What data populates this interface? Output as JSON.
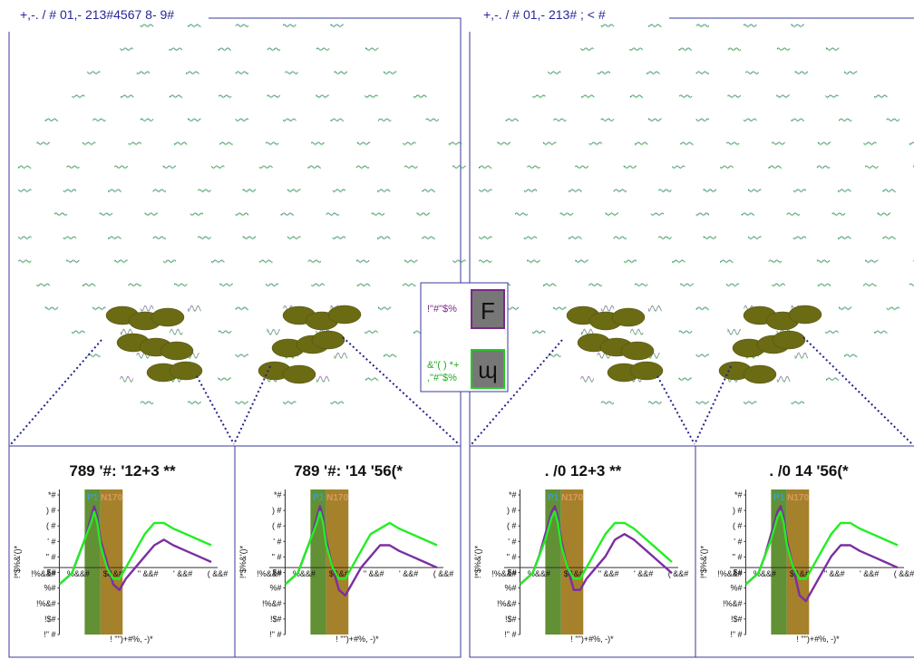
{
  "figure": {
    "left_title": "+,-. / # 01,- 213#4567 8- 9#",
    "right_title": "+,-. / # 01,- 213# ; < #"
  },
  "legend": {
    "item1_label": "!\"#\"$%",
    "item1_glyph": "F",
    "item1_color": "#7a2a8a",
    "item2_label_line1": "&\"( ) *+",
    "item2_label_line2": ",\"#\"$%",
    "item2_glyph": "ɰ",
    "item2_color": "#22cc22"
  },
  "colors": {
    "border": "#3a3a9a",
    "blob": "#6b6b14",
    "series_a": "#7b2fa0",
    "series_b": "#22ee22",
    "p1_band": "#5a8a2a",
    "n170_band": "#a07a20",
    "p1_label": "#3aa0c8",
    "n170_label": "#d89a60"
  },
  "chart_data": [
    {
      "type": "line",
      "title": "789 '#: '12+3 **",
      "ylabel": "!*$%&'()*",
      "xlabel": "! \"\")+#%, -)*",
      "y_ticks": [
        "*#",
        ") #",
        "( #",
        "' #",
        "\" #",
        "$#",
        "%#",
        "!%&#",
        "!$#",
        "!\" #"
      ],
      "x_ticks": [
        "!%&&#",
        "%&&#",
        "$&&#",
        "\" &&#",
        "' &&#",
        "( &&#"
      ],
      "bands": [
        {
          "label": "P1",
          "from": 0.08,
          "to": 0.13
        },
        {
          "label": "N170",
          "from": 0.13,
          "to": 0.2
        }
      ],
      "series": [
        {
          "color": "#7b2fa0",
          "values": [
            [
              0,
              -3
            ],
            [
              0.02,
              -2
            ],
            [
              0.04,
              -1
            ],
            [
              0.06,
              2
            ],
            [
              0.08,
              5
            ],
            [
              0.1,
              9
            ],
            [
              0.11,
              11
            ],
            [
              0.12,
              9
            ],
            [
              0.13,
              5
            ],
            [
              0.15,
              1
            ],
            [
              0.17,
              -3
            ],
            [
              0.19,
              -4
            ],
            [
              0.21,
              -2
            ],
            [
              0.24,
              0
            ],
            [
              0.27,
              2
            ],
            [
              0.3,
              4
            ],
            [
              0.33,
              5
            ],
            [
              0.36,
              4
            ],
            [
              0.4,
              3
            ],
            [
              0.44,
              2
            ],
            [
              0.48,
              1
            ]
          ]
        },
        {
          "color": "#22ee22",
          "values": [
            [
              0,
              -3
            ],
            [
              0.02,
              -2
            ],
            [
              0.04,
              -1
            ],
            [
              0.06,
              2
            ],
            [
              0.08,
              5
            ],
            [
              0.1,
              8
            ],
            [
              0.11,
              10
            ],
            [
              0.12,
              8
            ],
            [
              0.13,
              4
            ],
            [
              0.15,
              0
            ],
            [
              0.17,
              -2
            ],
            [
              0.19,
              -2
            ],
            [
              0.21,
              0
            ],
            [
              0.24,
              3
            ],
            [
              0.27,
              6
            ],
            [
              0.3,
              8
            ],
            [
              0.33,
              8
            ],
            [
              0.36,
              7
            ],
            [
              0.4,
              6
            ],
            [
              0.44,
              5
            ],
            [
              0.48,
              4
            ]
          ]
        }
      ]
    },
    {
      "type": "line",
      "title": "789 '#: '14 '56(*",
      "ylabel": "!*$%&'()*",
      "xlabel": "! \"\")+#%, -)*",
      "y_ticks": [
        "*#",
        ") #",
        "( #",
        "' #",
        "\" #",
        "$#",
        "%#",
        "!%&#",
        "!$#",
        "!\" #"
      ],
      "x_ticks": [
        "!%&&#",
        "%&&#",
        "$&&#",
        "\" &&#",
        "' &&#",
        "( &&#"
      ],
      "bands": [
        {
          "label": "P1",
          "from": 0.08,
          "to": 0.13
        },
        {
          "label": "N170",
          "from": 0.13,
          "to": 0.2
        }
      ],
      "series": [
        {
          "color": "#7b2fa0",
          "values": [
            [
              0,
              -3
            ],
            [
              0.02,
              -2
            ],
            [
              0.04,
              -1
            ],
            [
              0.06,
              2
            ],
            [
              0.08,
              5
            ],
            [
              0.1,
              9
            ],
            [
              0.11,
              11
            ],
            [
              0.12,
              9
            ],
            [
              0.13,
              5
            ],
            [
              0.15,
              0
            ],
            [
              0.17,
              -4
            ],
            [
              0.19,
              -5
            ],
            [
              0.21,
              -3
            ],
            [
              0.24,
              0
            ],
            [
              0.27,
              2
            ],
            [
              0.3,
              4
            ],
            [
              0.33,
              4
            ],
            [
              0.36,
              3
            ],
            [
              0.4,
              2
            ],
            [
              0.44,
              1
            ],
            [
              0.48,
              0
            ]
          ]
        },
        {
          "color": "#22ee22",
          "values": [
            [
              0,
              -3
            ],
            [
              0.02,
              -2
            ],
            [
              0.04,
              -1
            ],
            [
              0.06,
              2
            ],
            [
              0.08,
              5
            ],
            [
              0.1,
              8
            ],
            [
              0.11,
              10
            ],
            [
              0.12,
              8
            ],
            [
              0.13,
              4
            ],
            [
              0.15,
              0
            ],
            [
              0.17,
              -2
            ],
            [
              0.19,
              -2
            ],
            [
              0.21,
              0
            ],
            [
              0.24,
              3
            ],
            [
              0.27,
              6
            ],
            [
              0.3,
              7
            ],
            [
              0.33,
              8
            ],
            [
              0.36,
              7
            ],
            [
              0.4,
              6
            ],
            [
              0.44,
              5
            ],
            [
              0.48,
              4
            ]
          ]
        }
      ]
    },
    {
      "type": "line",
      "title": ". /0 12+3 **",
      "ylabel": "!*$%&'()*",
      "xlabel": "! \"\")+#%, -)*",
      "y_ticks": [
        "*#",
        ") #",
        "( #",
        "' #",
        "\" #",
        "$#",
        "%#",
        "!%&#",
        "!$#",
        "!\" #"
      ],
      "x_ticks": [
        "!%&&#",
        "%&&#",
        "$&&#",
        "\" &&#",
        "' &&#",
        "( &&#"
      ],
      "bands": [
        {
          "label": "P1",
          "from": 0.08,
          "to": 0.13
        },
        {
          "label": "N170",
          "from": 0.13,
          "to": 0.2
        }
      ],
      "series": [
        {
          "color": "#7b2fa0",
          "values": [
            [
              0,
              -3
            ],
            [
              0.02,
              -2
            ],
            [
              0.04,
              -1
            ],
            [
              0.06,
              2
            ],
            [
              0.08,
              6
            ],
            [
              0.1,
              10
            ],
            [
              0.11,
              11
            ],
            [
              0.12,
              9
            ],
            [
              0.13,
              5
            ],
            [
              0.15,
              0
            ],
            [
              0.17,
              -4
            ],
            [
              0.19,
              -4
            ],
            [
              0.21,
              -2
            ],
            [
              0.24,
              0
            ],
            [
              0.27,
              2
            ],
            [
              0.3,
              5
            ],
            [
              0.33,
              6
            ],
            [
              0.36,
              5
            ],
            [
              0.4,
              3
            ],
            [
              0.44,
              1
            ],
            [
              0.48,
              -1
            ]
          ]
        },
        {
          "color": "#22ee22",
          "values": [
            [
              0,
              -3
            ],
            [
              0.02,
              -2
            ],
            [
              0.04,
              -1
            ],
            [
              0.06,
              2
            ],
            [
              0.08,
              5
            ],
            [
              0.1,
              9
            ],
            [
              0.11,
              10
            ],
            [
              0.12,
              8
            ],
            [
              0.13,
              4
            ],
            [
              0.15,
              0
            ],
            [
              0.17,
              -2
            ],
            [
              0.19,
              -2
            ],
            [
              0.21,
              0
            ],
            [
              0.24,
              3
            ],
            [
              0.27,
              6
            ],
            [
              0.3,
              8
            ],
            [
              0.33,
              8
            ],
            [
              0.36,
              7
            ],
            [
              0.4,
              5
            ],
            [
              0.44,
              3
            ],
            [
              0.48,
              1
            ]
          ]
        }
      ]
    },
    {
      "type": "line",
      "title": ". /0 14 '56(*",
      "ylabel": "!*$%&'()*",
      "xlabel": "! \"\")+#%, -)*",
      "y_ticks": [
        "*#",
        ") #",
        "( #",
        "' #",
        "\" #",
        "$#",
        "%#",
        "!%&#",
        "!$#",
        "!\" #"
      ],
      "x_ticks": [
        "!%&&#",
        "%&&#",
        "$&&#",
        "\" &&#",
        "' &&#",
        "( &&#"
      ],
      "bands": [
        {
          "label": "P1",
          "from": 0.08,
          "to": 0.13
        },
        {
          "label": "N170",
          "from": 0.13,
          "to": 0.2
        }
      ],
      "series": [
        {
          "color": "#7b2fa0",
          "values": [
            [
              0,
              -3
            ],
            [
              0.02,
              -2
            ],
            [
              0.04,
              -1
            ],
            [
              0.06,
              2
            ],
            [
              0.08,
              6
            ],
            [
              0.1,
              10
            ],
            [
              0.11,
              11
            ],
            [
              0.12,
              9
            ],
            [
              0.13,
              5
            ],
            [
              0.15,
              0
            ],
            [
              0.17,
              -5
            ],
            [
              0.19,
              -6
            ],
            [
              0.21,
              -4
            ],
            [
              0.24,
              -1
            ],
            [
              0.27,
              2
            ],
            [
              0.3,
              4
            ],
            [
              0.33,
              4
            ],
            [
              0.36,
              3
            ],
            [
              0.4,
              2
            ],
            [
              0.44,
              1
            ],
            [
              0.48,
              0
            ]
          ]
        },
        {
          "color": "#22ee22",
          "values": [
            [
              0,
              -3
            ],
            [
              0.02,
              -2
            ],
            [
              0.04,
              -1
            ],
            [
              0.06,
              2
            ],
            [
              0.08,
              5
            ],
            [
              0.1,
              9
            ],
            [
              0.11,
              10
            ],
            [
              0.12,
              8
            ],
            [
              0.13,
              4
            ],
            [
              0.15,
              0
            ],
            [
              0.17,
              -2
            ],
            [
              0.19,
              -2
            ],
            [
              0.21,
              0
            ],
            [
              0.24,
              3
            ],
            [
              0.27,
              6
            ],
            [
              0.3,
              8
            ],
            [
              0.33,
              8
            ],
            [
              0.36,
              7
            ],
            [
              0.4,
              6
            ],
            [
              0.44,
              5
            ],
            [
              0.48,
              4
            ]
          ]
        }
      ]
    }
  ]
}
